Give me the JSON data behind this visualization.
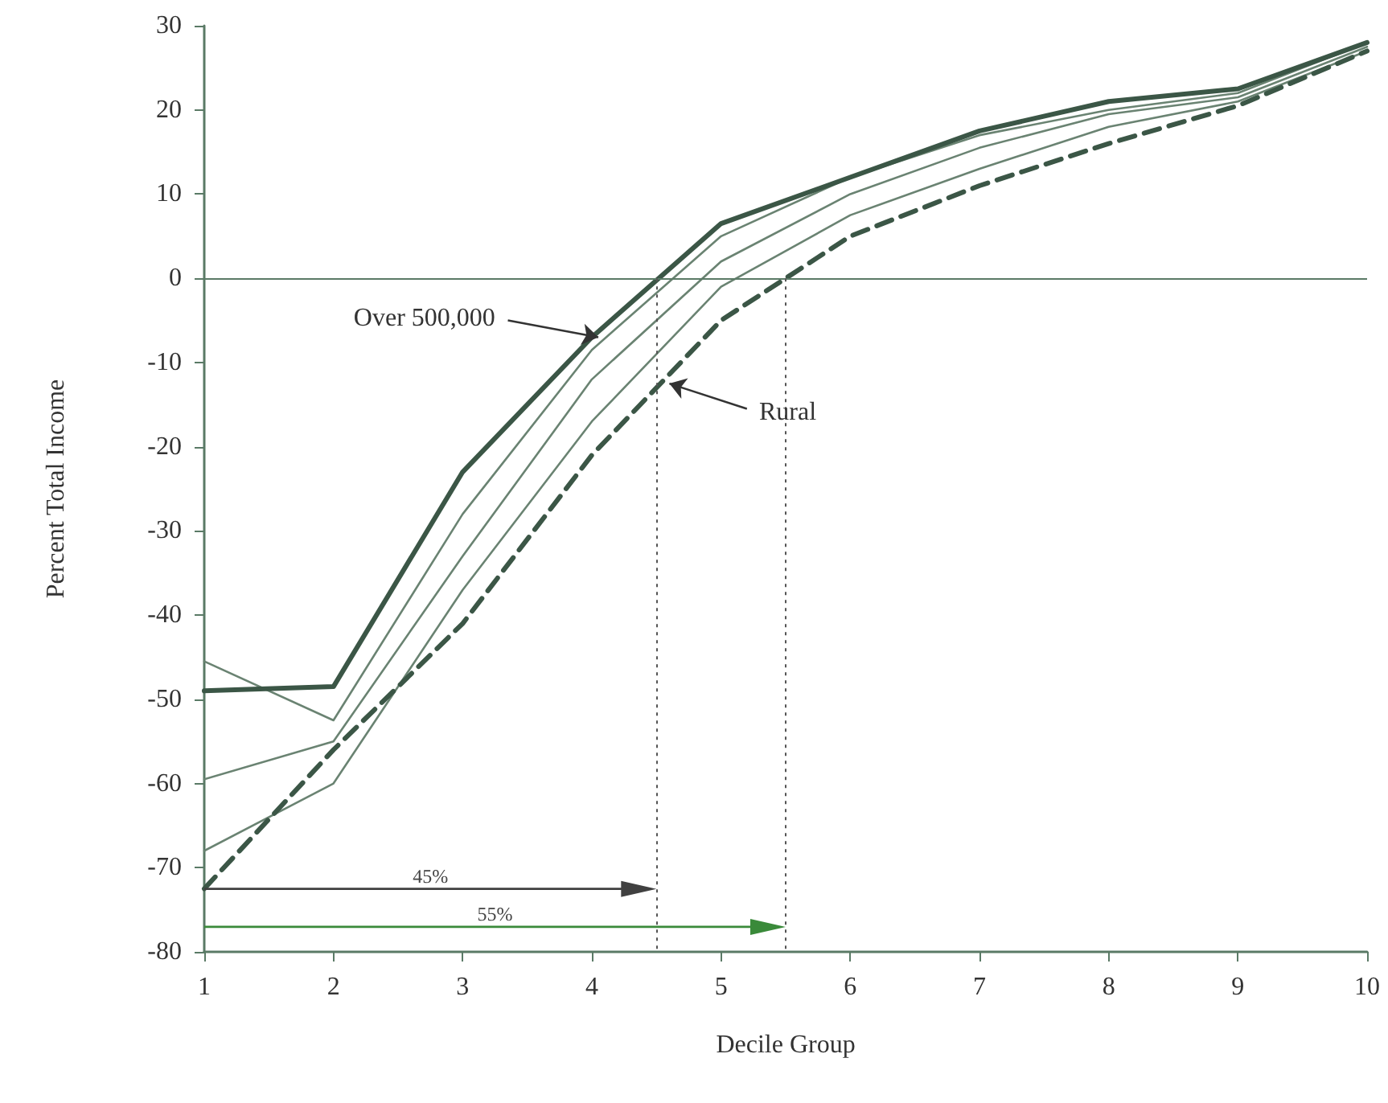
{
  "chart_data": {
    "type": "line",
    "xlabel": "Decile Group",
    "ylabel": "Percent Total Income",
    "x": [
      1,
      2,
      3,
      4,
      5,
      6,
      7,
      8,
      9,
      10
    ],
    "series": [
      {
        "color": "#3b5646",
        "line_style": "solid",
        "values": [
          -49,
          -48.5,
          -23,
          -7,
          6.5,
          12,
          17.5,
          21,
          22.5,
          28
        ]
      },
      {
        "color": "#6a8372",
        "line_style": "solid",
        "values": [
          -45.5,
          -52.5,
          -28,
          -8.5,
          5,
          12,
          17,
          20,
          22,
          28
        ]
      },
      {
        "color": "#6a8372",
        "line_style": "solid",
        "values": [
          -59.5,
          -55,
          -33,
          -12,
          2,
          10,
          15.5,
          19.5,
          21.5,
          27.5
        ]
      },
      {
        "color": "#6a8372",
        "line_style": "solid",
        "values": [
          -68,
          -60,
          -37,
          -17,
          -1,
          7.5,
          13,
          18,
          21,
          27
        ]
      },
      {
        "color": "#3b5646",
        "line_style": "dashed",
        "values": [
          -72.5,
          -56,
          -41,
          -21,
          -5,
          5,
          11,
          16,
          20.5,
          27
        ]
      }
    ],
    "xlim": [
      1,
      10
    ],
    "xticks": [
      1,
      2,
      3,
      4,
      5,
      6,
      7,
      8,
      9,
      10
    ],
    "ylim": [
      -80,
      30
    ],
    "yticks": [
      -80,
      -70,
      -60,
      -50,
      -40,
      -30,
      -20,
      -10,
      0,
      10,
      20,
      30
    ],
    "ref_lines": [
      {
        "axis": "y",
        "value": 0,
        "line_style": "solid",
        "color": "#5a7a66"
      },
      {
        "axis": "x",
        "value": 4.5,
        "line_style": "dotted",
        "color": "#555555"
      },
      {
        "axis": "x",
        "value": 5.5,
        "line_style": "dotted",
        "color": "#555555"
      }
    ],
    "annotations": [
      {
        "text": "Over 500,000",
        "x": 4.05,
        "y": -7
      },
      {
        "text": "Rural",
        "x": 4.6,
        "y": -12.5
      },
      "45%",
      "55%"
    ],
    "grid": false,
    "marker": "none"
  }
}
